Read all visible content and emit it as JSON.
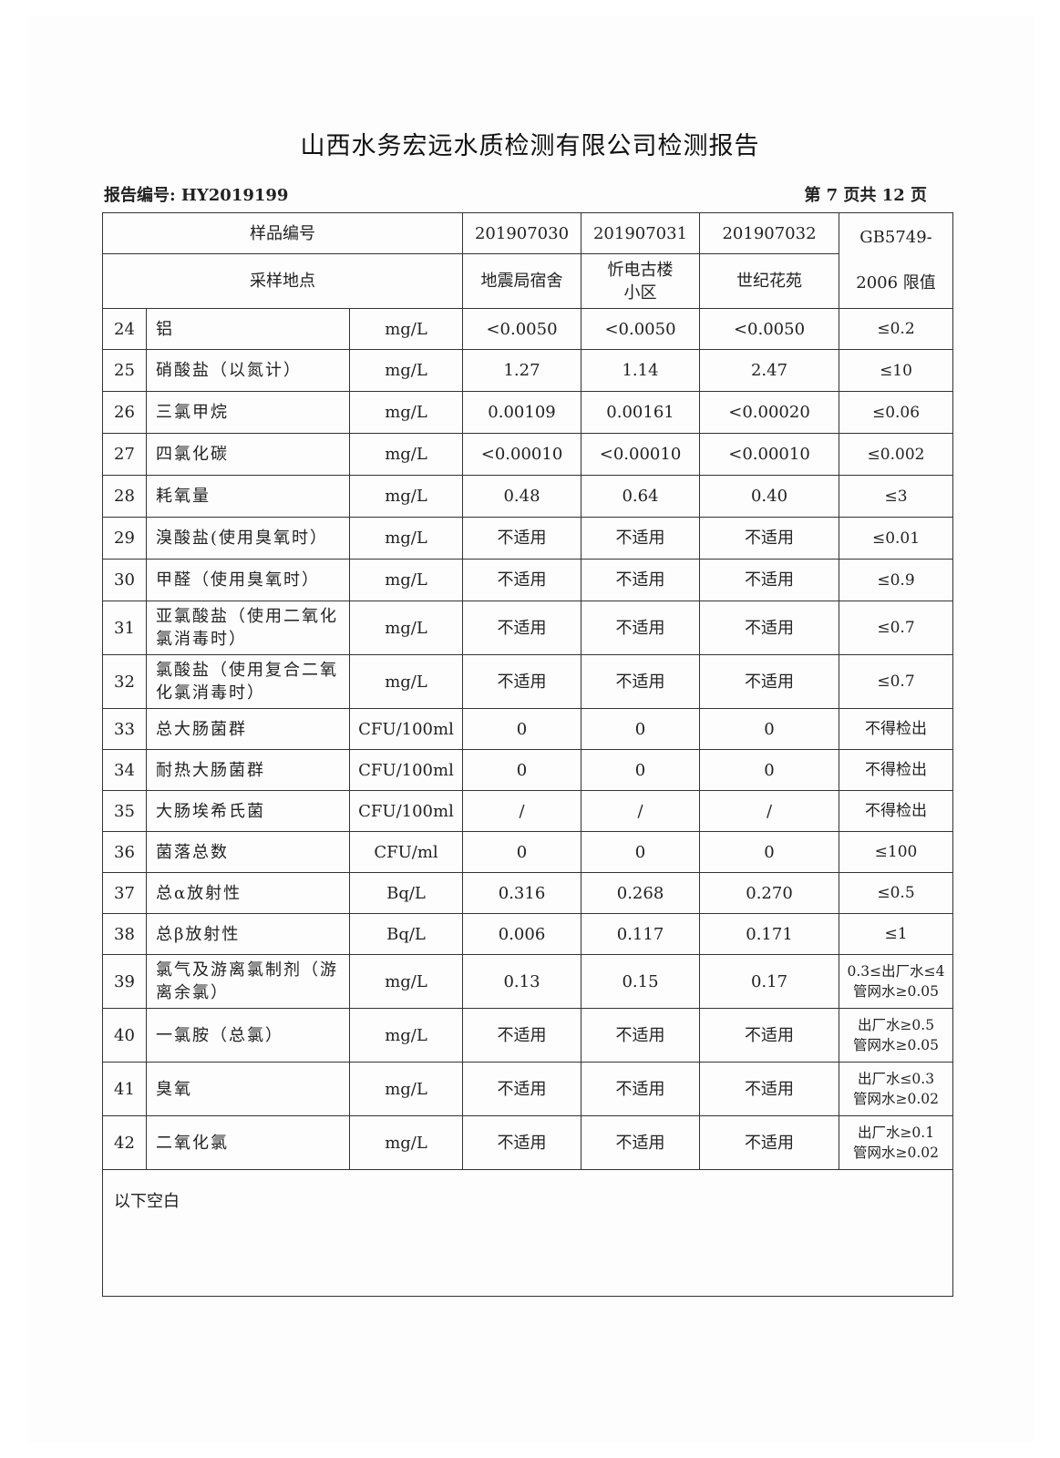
{
  "title": "山西水务宏远水质检测有限公司检测报告",
  "report_number": "报告编号: HY2019199",
  "page_info": "第 7 页共 12 页",
  "header": {
    "sample_id_label": "样品编号",
    "location_label": "采样地点",
    "standard_line1": "GB5749-",
    "standard_line2": "2006 限值",
    "samples": [
      {
        "id": "201907030",
        "location": "地震局宿舍"
      },
      {
        "id": "201907031",
        "location": "忻电古楼小区"
      },
      {
        "id": "201907032",
        "location": "世纪花苑"
      }
    ]
  },
  "rows": [
    {
      "no": "24",
      "item": "铝",
      "unit": "mg/L",
      "v": [
        "<0.0050",
        "<0.0050",
        "<0.0050"
      ],
      "limit": "≤0.2"
    },
    {
      "no": "25",
      "item": "硝酸盐（以氮计）",
      "unit": "mg/L",
      "v": [
        "1.27",
        "1.14",
        "2.47"
      ],
      "limit": "≤10"
    },
    {
      "no": "26",
      "item": "三氯甲烷",
      "unit": "mg/L",
      "v": [
        "0.00109",
        "0.00161",
        "<0.00020"
      ],
      "limit": "≤0.06"
    },
    {
      "no": "27",
      "item": "四氯化碳",
      "unit": "mg/L",
      "v": [
        "<0.00010",
        "<0.00010",
        "<0.00010"
      ],
      "limit": "≤0.002"
    },
    {
      "no": "28",
      "item": "耗氧量",
      "unit": "mg/L",
      "v": [
        "0.48",
        "0.64",
        "0.40"
      ],
      "limit": "≤3"
    },
    {
      "no": "29",
      "item": "溴酸盐(使用臭氧时）",
      "unit": "mg/L",
      "v": [
        "不适用",
        "不适用",
        "不适用"
      ],
      "limit": "≤0.01"
    },
    {
      "no": "30",
      "item": "甲醛（使用臭氧时）",
      "unit": "mg/L",
      "v": [
        "不适用",
        "不适用",
        "不适用"
      ],
      "limit": "≤0.9"
    },
    {
      "no": "31",
      "item": "亚氯酸盐（使用二氧化氯消毒时）",
      "unit": "mg/L",
      "v": [
        "不适用",
        "不适用",
        "不适用"
      ],
      "limit": "≤0.7"
    },
    {
      "no": "32",
      "item": "氯酸盐（使用复合二氧化氯消毒时）",
      "unit": "mg/L",
      "v": [
        "不适用",
        "不适用",
        "不适用"
      ],
      "limit": "≤0.7"
    },
    {
      "no": "33",
      "item": "总大肠菌群",
      "unit": "CFU/100ml",
      "v": [
        "0",
        "0",
        "0"
      ],
      "limit": "不得检出"
    },
    {
      "no": "34",
      "item": "耐热大肠菌群",
      "unit": "CFU/100ml",
      "v": [
        "0",
        "0",
        "0"
      ],
      "limit": "不得检出"
    },
    {
      "no": "35",
      "item": "大肠埃希氏菌",
      "unit": "CFU/100ml",
      "v": [
        "/",
        "/",
        "/"
      ],
      "limit": "不得检出"
    },
    {
      "no": "36",
      "item": "菌落总数",
      "unit": "CFU/ml",
      "v": [
        "0",
        "0",
        "0"
      ],
      "limit": "≤100"
    },
    {
      "no": "37",
      "item": "总α放射性",
      "unit": "Bq/L",
      "v": [
        "0.316",
        "0.268",
        "0.270"
      ],
      "limit": "≤0.5"
    },
    {
      "no": "38",
      "item": "总β放射性",
      "unit": "Bq/L",
      "v": [
        "0.006",
        "0.117",
        "0.171"
      ],
      "limit": "≤1"
    },
    {
      "no": "39",
      "item": "氯气及游离氯制剂（游离余氯）",
      "unit": "mg/L",
      "v": [
        "0.13",
        "0.15",
        "0.17"
      ],
      "limit": "0.3≤出厂水≤4 管网水≥0.05"
    },
    {
      "no": "40",
      "item": "一氯胺（总氯）",
      "unit": "mg/L",
      "v": [
        "不适用",
        "不适用",
        "不适用"
      ],
      "limit": "出厂水≥0.5 管网水≥0.05"
    },
    {
      "no": "41",
      "item": "臭氧",
      "unit": "mg/L",
      "v": [
        "不适用",
        "不适用",
        "不适用"
      ],
      "limit": "出厂水≤0.3 管网水≥0.02"
    },
    {
      "no": "42",
      "item": "二氧化氯",
      "unit": "mg/L",
      "v": [
        "不适用",
        "不适用",
        "不适用"
      ],
      "limit": "出厂水≥0.1 管网水≥0.02"
    }
  ],
  "footer_note": "以下空白"
}
